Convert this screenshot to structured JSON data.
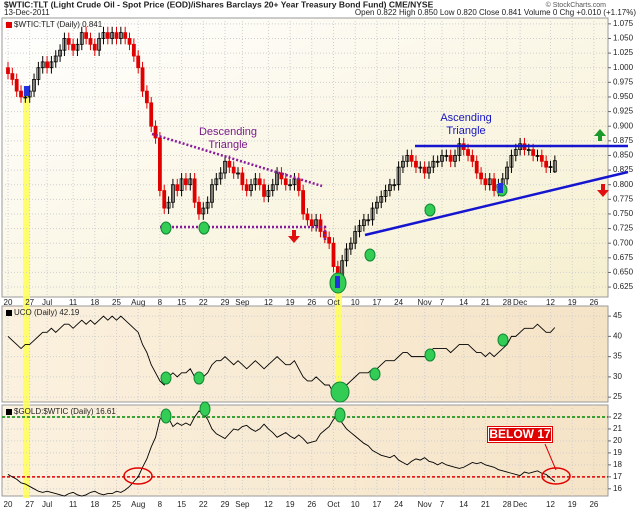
{
  "chart_data": [
    {
      "type": "candlestick",
      "title": "$WTIC:TLT (Light Crude Oil - Spot Price (EOD)/iShares Barclays 20+ Year Treasury Bond Fund) CME/NYSE",
      "date": "13-Dec-2011",
      "quote": "Open 0.822 High 0.850 Low 0.820 Close 0.841 Volume 0 Chg +0.010 (+1.17%)",
      "source": "© StockCharts.com",
      "annotations": [
        "Descending Triangle",
        "Ascending Triangle"
      ],
      "ylim": [
        0.608,
        1.085
      ],
      "yticks": [
        0.625,
        {
          "value": 0.65,
          "label": "0.650"
        },
        0.675,
        {
          "value": 0.7,
          "label": "0.700"
        },
        0.725,
        {
          "value": 0.75,
          "label": "0.750"
        },
        0.775,
        {
          "value": 0.8,
          "label": "0.800"
        },
        0.825,
        {
          "value": 0.85,
          "label": "0.850"
        },
        0.875,
        {
          "value": 0.9,
          "label": "0.900"
        },
        0.925,
        {
          "value": 0.95,
          "label": "0.950"
        },
        0.975,
        {
          "value": 1.0,
          "label": "1.000"
        },
        1.025,
        {
          "value": 1.05,
          "label": "1.050"
        },
        1.075
      ],
      "xticks": [
        {
          "value": 0,
          "label": "20"
        },
        {
          "value": 5,
          "label": "27"
        },
        {
          "value": 9,
          "label": "Jul"
        },
        {
          "value": 15,
          "label": "11"
        },
        {
          "value": 20,
          "label": "18"
        },
        {
          "value": 25,
          "label": "25"
        },
        {
          "value": 30,
          "label": "Aug"
        },
        {
          "value": 35,
          "label": "8"
        },
        {
          "value": 40,
          "label": "15"
        },
        {
          "value": 45,
          "label": "22"
        },
        {
          "value": 50,
          "label": "29"
        },
        {
          "value": 54,
          "label": "Sep"
        },
        {
          "value": 60,
          "label": "12"
        },
        {
          "value": 65,
          "label": "19"
        },
        {
          "value": 70,
          "label": "26"
        },
        {
          "value": 75,
          "label": "Oct"
        },
        {
          "value": 80,
          "label": "10"
        },
        {
          "value": 85,
          "label": "17"
        },
        {
          "value": 90,
          "label": "24"
        },
        {
          "value": 96,
          "label": "Nov"
        },
        {
          "value": 100,
          "label": "7"
        },
        {
          "value": 105,
          "label": "14"
        },
        {
          "value": 110,
          "label": "21"
        },
        {
          "value": 115,
          "label": "28"
        },
        {
          "value": 118,
          "label": "Dec"
        },
        {
          "value": 125,
          "label": "12"
        },
        {
          "value": 130,
          "label": "19"
        },
        {
          "value": 135,
          "label": "26"
        }
      ],
      "grid": true,
      "series": [
        {
          "name": "$WTIC:TLT (Daily) 0.841",
          "up_color": "#000000",
          "down_color": "#e00000",
          "open": [
            1.0,
            0.99,
            0.98,
            0.96,
            0.95,
            0.95,
            0.96,
            0.98,
            1.0,
            1.01,
            1.0,
            1.01,
            1.02,
            1.03,
            1.05,
            1.04,
            1.03,
            1.04,
            1.06,
            1.05,
            1.04,
            1.03,
            1.05,
            1.06,
            1.05,
            1.06,
            1.05,
            1.06,
            1.05,
            1.04,
            1.02,
            1.0,
            0.96,
            0.94,
            0.9,
            0.88,
            0.79,
            0.76,
            0.77,
            0.8,
            0.79,
            0.81,
            0.8,
            0.81,
            0.77,
            0.75,
            0.76,
            0.77,
            0.8,
            0.81,
            0.82,
            0.84,
            0.83,
            0.82,
            0.82,
            0.8,
            0.79,
            0.8,
            0.81,
            0.8,
            0.78,
            0.79,
            0.8,
            0.82,
            0.81,
            0.8,
            0.8,
            0.81,
            0.79,
            0.75,
            0.74,
            0.73,
            0.74,
            0.72,
            0.71,
            0.7,
            0.66,
            0.64,
            0.67,
            0.69,
            0.7,
            0.72,
            0.73,
            0.74,
            0.74,
            0.76,
            0.77,
            0.78,
            0.79,
            0.8,
            0.8,
            0.83,
            0.84,
            0.85,
            0.84,
            0.83,
            0.83,
            0.82,
            0.83,
            0.84,
            0.84,
            0.85,
            0.85,
            0.84,
            0.85,
            0.87,
            0.86,
            0.85,
            0.84,
            0.82,
            0.81,
            0.8,
            0.81,
            0.79,
            0.8,
            0.81,
            0.83,
            0.85,
            0.86,
            0.87,
            0.86,
            0.86,
            0.85,
            0.85,
            0.84,
            0.83,
            0.822
          ],
          "high": [
            1.01,
            1.0,
            0.99,
            0.97,
            0.96,
            0.97,
            0.99,
            1.01,
            1.02,
            1.02,
            1.02,
            1.03,
            1.04,
            1.06,
            1.06,
            1.05,
            1.05,
            1.07,
            1.07,
            1.06,
            1.05,
            1.06,
            1.07,
            1.07,
            1.07,
            1.07,
            1.07,
            1.07,
            1.06,
            1.05,
            1.03,
            1.01,
            0.97,
            0.95,
            0.91,
            0.89,
            0.8,
            0.78,
            0.81,
            0.81,
            0.82,
            0.82,
            0.82,
            0.82,
            0.78,
            0.77,
            0.78,
            0.81,
            0.82,
            0.83,
            0.85,
            0.85,
            0.84,
            0.83,
            0.83,
            0.81,
            0.81,
            0.82,
            0.82,
            0.81,
            0.8,
            0.81,
            0.83,
            0.83,
            0.82,
            0.81,
            0.82,
            0.82,
            0.8,
            0.76,
            0.75,
            0.75,
            0.75,
            0.73,
            0.72,
            0.71,
            0.67,
            0.68,
            0.7,
            0.71,
            0.73,
            0.74,
            0.75,
            0.75,
            0.77,
            0.78,
            0.79,
            0.8,
            0.81,
            0.81,
            0.84,
            0.85,
            0.86,
            0.86,
            0.85,
            0.84,
            0.84,
            0.84,
            0.85,
            0.85,
            0.86,
            0.86,
            0.86,
            0.86,
            0.88,
            0.88,
            0.87,
            0.86,
            0.85,
            0.83,
            0.82,
            0.82,
            0.82,
            0.81,
            0.82,
            0.84,
            0.86,
            0.87,
            0.88,
            0.88,
            0.87,
            0.87,
            0.86,
            0.86,
            0.85,
            0.841,
            0.85
          ],
          "low": [
            0.98,
            0.97,
            0.95,
            0.94,
            0.94,
            0.94,
            0.95,
            0.97,
            0.99,
            0.99,
            0.99,
            1.0,
            1.01,
            1.02,
            1.03,
            1.02,
            1.02,
            1.03,
            1.04,
            1.03,
            1.02,
            1.02,
            1.04,
            1.04,
            1.04,
            1.04,
            1.04,
            1.04,
            1.03,
            1.01,
            0.99,
            0.95,
            0.93,
            0.89,
            0.87,
            0.78,
            0.75,
            0.75,
            0.76,
            0.78,
            0.78,
            0.79,
            0.79,
            0.76,
            0.74,
            0.74,
            0.75,
            0.76,
            0.79,
            0.8,
            0.81,
            0.82,
            0.81,
            0.81,
            0.79,
            0.78,
            0.78,
            0.79,
            0.79,
            0.77,
            0.77,
            0.78,
            0.79,
            0.8,
            0.79,
            0.79,
            0.79,
            0.78,
            0.74,
            0.73,
            0.72,
            0.72,
            0.71,
            0.7,
            0.69,
            0.65,
            0.63,
            0.63,
            0.66,
            0.68,
            0.69,
            0.71,
            0.72,
            0.73,
            0.73,
            0.75,
            0.76,
            0.77,
            0.78,
            0.79,
            0.79,
            0.82,
            0.83,
            0.83,
            0.82,
            0.82,
            0.81,
            0.81,
            0.82,
            0.83,
            0.83,
            0.84,
            0.83,
            0.83,
            0.84,
            0.85,
            0.84,
            0.83,
            0.81,
            0.8,
            0.79,
            0.79,
            0.78,
            0.78,
            0.79,
            0.8,
            0.82,
            0.84,
            0.85,
            0.85,
            0.85,
            0.84,
            0.84,
            0.83,
            0.82,
            0.82,
            0.82
          ],
          "close": [
            0.99,
            0.98,
            0.96,
            0.95,
            0.95,
            0.96,
            0.98,
            1.0,
            1.01,
            1.0,
            1.01,
            1.02,
            1.03,
            1.05,
            1.04,
            1.03,
            1.04,
            1.06,
            1.05,
            1.04,
            1.03,
            1.05,
            1.06,
            1.05,
            1.06,
            1.05,
            1.06,
            1.05,
            1.04,
            1.02,
            1.0,
            0.96,
            0.94,
            0.9,
            0.88,
            0.79,
            0.76,
            0.77,
            0.8,
            0.79,
            0.81,
            0.8,
            0.81,
            0.77,
            0.75,
            0.76,
            0.77,
            0.8,
            0.81,
            0.82,
            0.84,
            0.83,
            0.82,
            0.82,
            0.8,
            0.79,
            0.8,
            0.81,
            0.8,
            0.78,
            0.79,
            0.8,
            0.82,
            0.81,
            0.8,
            0.8,
            0.81,
            0.79,
            0.75,
            0.74,
            0.73,
            0.74,
            0.72,
            0.71,
            0.7,
            0.66,
            0.64,
            0.67,
            0.69,
            0.7,
            0.72,
            0.73,
            0.74,
            0.74,
            0.76,
            0.77,
            0.78,
            0.79,
            0.8,
            0.8,
            0.83,
            0.84,
            0.85,
            0.84,
            0.83,
            0.83,
            0.82,
            0.83,
            0.84,
            0.84,
            0.85,
            0.85,
            0.84,
            0.85,
            0.87,
            0.86,
            0.85,
            0.84,
            0.82,
            0.81,
            0.8,
            0.81,
            0.79,
            0.8,
            0.81,
            0.83,
            0.85,
            0.86,
            0.87,
            0.86,
            0.86,
            0.85,
            0.85,
            0.84,
            0.83,
            0.831,
            0.841
          ]
        }
      ]
    },
    {
      "type": "line",
      "ylim": [
        23.8,
        47.5
      ],
      "yticks": [
        25,
        30,
        35,
        40,
        45
      ],
      "grid": true,
      "series": [
        {
          "name": "UCO (Daily) 42.19",
          "color": "#000000",
          "values": [
            40,
            39,
            38,
            37,
            38,
            38,
            39,
            40,
            41,
            41,
            42,
            41,
            42,
            43,
            43,
            42,
            43,
            44,
            43,
            44,
            43,
            44,
            45,
            44,
            45,
            44,
            45,
            44,
            43,
            42,
            41,
            38,
            36,
            33,
            31,
            29,
            28,
            30,
            31,
            30,
            31,
            31,
            32,
            30,
            29,
            30,
            31,
            33,
            34,
            34,
            35,
            34,
            33,
            34,
            33,
            32,
            33,
            34,
            33,
            32,
            33,
            34,
            35,
            34,
            33,
            33,
            34,
            32,
            30,
            29,
            29,
            30,
            29,
            28,
            28,
            26,
            26,
            27,
            28,
            29,
            30,
            31,
            31,
            31,
            32,
            32,
            33,
            34,
            34,
            34,
            35,
            36,
            36,
            35,
            35,
            35,
            35,
            36,
            37,
            37,
            37,
            37,
            36,
            37,
            38,
            38,
            38,
            37,
            36,
            36,
            35,
            36,
            35,
            36,
            37,
            38,
            40,
            40,
            41,
            42,
            42,
            42,
            43,
            42,
            41,
            41,
            42.19
          ]
        }
      ]
    },
    {
      "type": "line",
      "ylim": [
        15.4,
        23
      ],
      "yticks": [
        16,
        17,
        18,
        19,
        20,
        21,
        22
      ],
      "grid": true,
      "annotations": [
        "BELOW 17"
      ],
      "reference_lines": [
        {
          "value": 22,
          "color": "#008800"
        },
        {
          "value": 17,
          "color": "#e00000"
        }
      ],
      "xticks": [
        {
          "value": 0,
          "label": "20"
        },
        {
          "value": 5,
          "label": "27"
        },
        {
          "value": 9,
          "label": "Jul"
        },
        {
          "value": 15,
          "label": "11"
        },
        {
          "value": 20,
          "label": "18"
        },
        {
          "value": 25,
          "label": "25"
        },
        {
          "value": 30,
          "label": "Aug"
        },
        {
          "value": 35,
          "label": "8"
        },
        {
          "value": 40,
          "label": "15"
        },
        {
          "value": 45,
          "label": "22"
        },
        {
          "value": 50,
          "label": "29"
        },
        {
          "value": 54,
          "label": "Sep"
        },
        {
          "value": 60,
          "label": "12"
        },
        {
          "value": 65,
          "label": "19"
        },
        {
          "value": 70,
          "label": "26"
        },
        {
          "value": 75,
          "label": "Oct"
        },
        {
          "value": 80,
          "label": "10"
        },
        {
          "value": 85,
          "label": "17"
        },
        {
          "value": 90,
          "label": "24"
        },
        {
          "value": 96,
          "label": "Nov"
        },
        {
          "value": 100,
          "label": "7"
        },
        {
          "value": 105,
          "label": "14"
        },
        {
          "value": 110,
          "label": "21"
        },
        {
          "value": 115,
          "label": "28"
        },
        {
          "value": 118,
          "label": "Dec"
        },
        {
          "value": 125,
          "label": "12"
        },
        {
          "value": 130,
          "label": "19"
        },
        {
          "value": 135,
          "label": "26"
        }
      ],
      "series": [
        {
          "name": "$GOLD:$WTIC (Daily) 16.61",
          "color": "#000000",
          "values": [
            17.2,
            17.0,
            16.8,
            16.5,
            16.4,
            16.2,
            16.0,
            15.8,
            15.7,
            15.8,
            15.7,
            15.6,
            15.5,
            15.4,
            15.6,
            15.7,
            15.5,
            15.4,
            15.5,
            15.7,
            15.8,
            15.6,
            15.5,
            15.6,
            15.6,
            15.8,
            15.7,
            15.9,
            16.2,
            16.6,
            17.0,
            17.8,
            18.5,
            19.5,
            20.3,
            21.8,
            22.3,
            21.9,
            21.2,
            21.5,
            21.3,
            21.5,
            21.3,
            22.0,
            22.5,
            22.3,
            21.8,
            21.0,
            20.6,
            20.4,
            20.2,
            20.6,
            21.0,
            20.9,
            21.2,
            21.3,
            21.0,
            20.8,
            21.0,
            21.4,
            21.0,
            20.7,
            20.3,
            20.5,
            20.7,
            20.4,
            20.2,
            20.5,
            20.2,
            19.8,
            19.9,
            20.0,
            20.6,
            20.9,
            21.2,
            21.8,
            22.2,
            21.5,
            21.0,
            20.7,
            20.4,
            20.1,
            19.8,
            19.6,
            19.2,
            19.0,
            18.8,
            18.7,
            18.6,
            18.8,
            18.4,
            18.2,
            18.0,
            18.3,
            18.5,
            18.4,
            18.6,
            18.3,
            18.2,
            18.0,
            18.2,
            18.0,
            17.9,
            17.8,
            17.7,
            17.8,
            18.0,
            18.2,
            18.1,
            18.2,
            18.0,
            17.9,
            17.8,
            17.6,
            17.5,
            17.4,
            17.3,
            17.2,
            17.1,
            17.4,
            17.3,
            17.4,
            17.5,
            17.3,
            17.2,
            16.9,
            16.61
          ]
        }
      ]
    }
  ]
}
